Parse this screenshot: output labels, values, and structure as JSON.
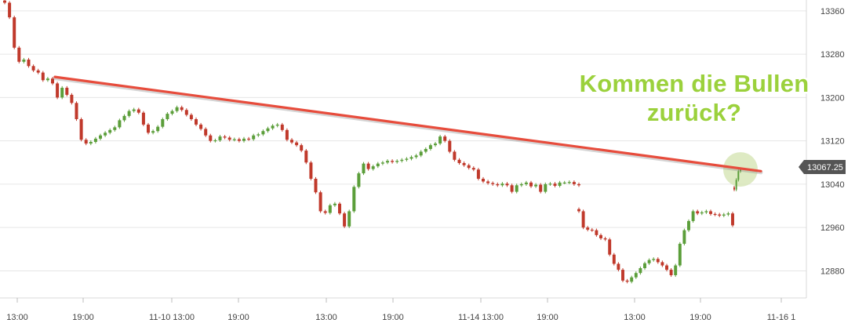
{
  "annotation": {
    "line1": "Kommen die Bullen",
    "line2": "zurück?"
  },
  "price_marker": {
    "value": "13067.25"
  },
  "colors": {
    "up": "#5b9e3a",
    "down": "#c0392b",
    "trendline": "#e74c3c",
    "headline": "#9bd13c",
    "highlight": "#d8e6b8",
    "price_label_bg": "#555555"
  },
  "chart_data": {
    "type": "candlestick",
    "y_ticks": [
      13360,
      13280,
      13200,
      13120,
      13040,
      12960,
      12880
    ],
    "x_ticks": [
      "13:00",
      "19:00",
      "11-10 13:00",
      "19:00",
      "13:00",
      "19:00",
      "11-14 13:00",
      "19:00",
      "13:00",
      "19:00",
      "11-16 1"
    ],
    "ylim": [
      12830,
      13380
    ],
    "grid": true,
    "last_price": 13067.25,
    "trendline": {
      "from": 13238,
      "to": 13064
    },
    "segments": [
      {
        "points": [
          13375,
          13348,
          13292,
          13266,
          13270,
          13258,
          13250,
          13246,
          13232,
          13235,
          13226,
          13200,
          13218,
          13205,
          13190,
          13160,
          13122,
          13115,
          13118,
          13124,
          13130,
          13135,
          13140,
          13145,
          13158,
          13166,
          13175,
          13178,
          13172,
          13150,
          13135,
          13138,
          13146,
          13160,
          13170,
          13175,
          13182,
          13177,
          13168,
          13160,
          13150,
          13142,
          13130,
          13120,
          13121,
          13128,
          13126,
          13122,
          13123,
          13120,
          13124,
          13123,
          13130,
          13132,
          13138,
          13143,
          13148,
          13150,
          13140,
          13122,
          13117,
          13112,
          13102,
          13080,
          13050,
          13025,
          12990,
          12987,
          13001,
          13004,
          12986,
          12962,
          12990,
          13035,
          13060,
          13078,
          13068,
          13073,
          13078,
          13080,
          13083,
          13081,
          13083,
          13085,
          13087,
          13090,
          13093,
          13100,
          13105,
          13112,
          13115,
          13128,
          13120,
          13100,
          13085,
          13079,
          13075,
          13070,
          13067,
          13050,
          13045,
          13042,
          13040,
          13038,
          13041,
          13038,
          13026,
          13038,
          13040,
          13043,
          13036,
          13039,
          13026,
          13040,
          13041,
          13037,
          13043,
          13043,
          13044,
          13040,
          13038
        ]
      },
      {
        "points": [
          12990,
          12960,
          12956,
          12955,
          12946,
          12940,
          12938,
          12910,
          12893,
          12882,
          12862,
          12860,
          12868,
          12876,
          12885,
          12894,
          12900,
          12902,
          12896,
          12890,
          12882,
          12872,
          12890,
          12930,
          12955,
          12972,
          12990,
          12986,
          12988,
          12990,
          12985,
          12984,
          12982,
          12984,
          12986,
          12964
        ]
      },
      {
        "points": [
          13030,
          13048,
          13064,
          13067
        ]
      }
    ]
  }
}
